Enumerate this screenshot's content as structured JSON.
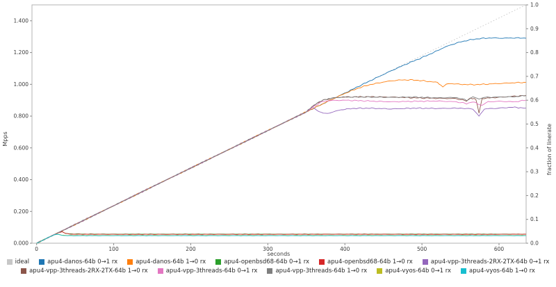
{
  "chart_data": {
    "type": "line",
    "title": "",
    "xlabel": "seconds",
    "ylabel_left": "Mpps",
    "ylabel_right": "fraction of linerate",
    "x_ticks": [
      0,
      100,
      200,
      300,
      400,
      500,
      600
    ],
    "x_tick_labels": [
      "0",
      "100",
      "200",
      "300",
      "400",
      "500",
      "600"
    ],
    "x_range": [
      0,
      635
    ],
    "y_left_ticks": [
      0.0,
      0.2,
      0.4,
      0.6,
      0.8,
      1.0,
      1.2,
      1.4
    ],
    "y_left_tick_labels": [
      "0.000",
      "0.200",
      "0.400",
      "0.600",
      "0.800",
      "1.000",
      "1.200",
      "1.400"
    ],
    "y_left_range": [
      0,
      1.5
    ],
    "y_right_ticks": [
      0.0,
      0.1,
      0.2,
      0.3,
      0.4,
      0.5,
      0.6,
      0.7,
      0.8,
      0.9,
      1.0
    ],
    "y_right_tick_labels": [
      "0.0",
      "0.1",
      "0.2",
      "0.3",
      "0.4",
      "0.5",
      "0.6",
      "0.7",
      "0.8",
      "0.9",
      "1.0"
    ],
    "y_right_range": [
      0,
      1.0
    ],
    "grid": false,
    "legend_position": "bottom",
    "legend_rows": [
      [
        0,
        1,
        2,
        3,
        4,
        5
      ],
      [
        6,
        7,
        8,
        9,
        10
      ]
    ],
    "series": [
      {
        "name": "ideal",
        "color": "#c7c7c7",
        "dash": "1.6,2.6",
        "noise": 0,
        "points": [
          [
            0,
            0
          ],
          [
            635,
            1.5
          ]
        ]
      },
      {
        "name": "apu4-danos-64b 0→1 rx",
        "color": "#1f77b4",
        "dash": "",
        "noise": 0.004,
        "points": [
          [
            0,
            0
          ],
          [
            50,
            0.118
          ],
          [
            100,
            0.236
          ],
          [
            150,
            0.355
          ],
          [
            200,
            0.473
          ],
          [
            250,
            0.591
          ],
          [
            300,
            0.709
          ],
          [
            350,
            0.827
          ],
          [
            400,
            0.945
          ],
          [
            430,
            1.016
          ],
          [
            460,
            1.085
          ],
          [
            480,
            1.128
          ],
          [
            500,
            1.168
          ],
          [
            515,
            1.2
          ],
          [
            530,
            1.235
          ],
          [
            545,
            1.26
          ],
          [
            560,
            1.278
          ],
          [
            575,
            1.288
          ],
          [
            590,
            1.292
          ],
          [
            605,
            1.29
          ],
          [
            620,
            1.292
          ],
          [
            635,
            1.29
          ]
        ]
      },
      {
        "name": "apu4-danos-64b 1→0 rx",
        "color": "#ff7f0e",
        "dash": "",
        "noise": 0.004,
        "points": [
          [
            0,
            0
          ],
          [
            50,
            0.118
          ],
          [
            100,
            0.236
          ],
          [
            150,
            0.355
          ],
          [
            200,
            0.473
          ],
          [
            250,
            0.591
          ],
          [
            300,
            0.709
          ],
          [
            350,
            0.827
          ],
          [
            380,
            0.898
          ],
          [
            400,
            0.943
          ],
          [
            415,
            0.972
          ],
          [
            430,
            0.995
          ],
          [
            445,
            1.01
          ],
          [
            460,
            1.022
          ],
          [
            475,
            1.028
          ],
          [
            490,
            1.027
          ],
          [
            505,
            1.02
          ],
          [
            520,
            1.012
          ],
          [
            527,
            0.985
          ],
          [
            534,
            1.005
          ],
          [
            550,
            1.0
          ],
          [
            565,
            0.998
          ],
          [
            580,
            1.0
          ],
          [
            600,
            1.005
          ],
          [
            620,
            1.01
          ],
          [
            635,
            1.012
          ]
        ]
      },
      {
        "name": "apu4-openbsd68-64b 0→1 rx",
        "color": "#2ca02c",
        "dash": "",
        "noise": 0.0012,
        "points": [
          [
            0,
            0
          ],
          [
            10,
            0.024
          ],
          [
            20,
            0.047
          ],
          [
            28,
            0.066
          ],
          [
            33,
            0.073
          ],
          [
            37,
            0.063
          ],
          [
            42,
            0.059
          ],
          [
            60,
            0.058
          ],
          [
            100,
            0.0575
          ],
          [
            200,
            0.0575
          ],
          [
            300,
            0.0575
          ],
          [
            400,
            0.0575
          ],
          [
            500,
            0.0575
          ],
          [
            600,
            0.0575
          ],
          [
            635,
            0.0575
          ]
        ]
      },
      {
        "name": "apu4-openbsd68-64b 1→0 rx",
        "color": "#d62728",
        "dash": "",
        "noise": 0.0012,
        "points": [
          [
            0,
            0
          ],
          [
            10,
            0.024
          ],
          [
            20,
            0.047
          ],
          [
            28,
            0.066
          ],
          [
            33,
            0.072
          ],
          [
            38,
            0.061
          ],
          [
            45,
            0.057
          ],
          [
            100,
            0.056
          ],
          [
            200,
            0.056
          ],
          [
            300,
            0.056
          ],
          [
            400,
            0.0565
          ],
          [
            500,
            0.056
          ],
          [
            600,
            0.056
          ],
          [
            635,
            0.057
          ]
        ]
      },
      {
        "name": "apu4-vpp-3threads-2RX-2TX-64b 0→1 rx",
        "color": "#9467bd",
        "dash": "",
        "noise": 0.004,
        "points": [
          [
            0,
            0
          ],
          [
            50,
            0.118
          ],
          [
            100,
            0.236
          ],
          [
            150,
            0.355
          ],
          [
            200,
            0.473
          ],
          [
            250,
            0.591
          ],
          [
            300,
            0.709
          ],
          [
            330,
            0.78
          ],
          [
            350,
            0.825
          ],
          [
            358,
            0.855
          ],
          [
            366,
            0.83
          ],
          [
            372,
            0.815
          ],
          [
            380,
            0.82
          ],
          [
            395,
            0.84
          ],
          [
            410,
            0.848
          ],
          [
            430,
            0.85
          ],
          [
            460,
            0.845
          ],
          [
            490,
            0.85
          ],
          [
            520,
            0.848
          ],
          [
            550,
            0.85
          ],
          [
            566,
            0.845
          ],
          [
            574,
            0.8
          ],
          [
            581,
            0.845
          ],
          [
            600,
            0.85
          ],
          [
            618,
            0.856
          ],
          [
            635,
            0.85
          ]
        ]
      },
      {
        "name": "apu4-vpp-3threads-2RX-2TX-64b 1→0 rx",
        "color": "#8c564b",
        "dash": "",
        "noise": 0.004,
        "points": [
          [
            0,
            0
          ],
          [
            50,
            0.118
          ],
          [
            100,
            0.236
          ],
          [
            150,
            0.355
          ],
          [
            200,
            0.473
          ],
          [
            250,
            0.591
          ],
          [
            300,
            0.709
          ],
          [
            350,
            0.827
          ],
          [
            362,
            0.875
          ],
          [
            372,
            0.9
          ],
          [
            385,
            0.915
          ],
          [
            400,
            0.92
          ],
          [
            430,
            0.922
          ],
          [
            460,
            0.92
          ],
          [
            490,
            0.915
          ],
          [
            520,
            0.912
          ],
          [
            545,
            0.91
          ],
          [
            558,
            0.895
          ],
          [
            563,
            0.915
          ],
          [
            570,
            0.905
          ],
          [
            574,
            0.82
          ],
          [
            578,
            0.91
          ],
          [
            590,
            0.915
          ],
          [
            605,
            0.92
          ],
          [
            620,
            0.925
          ],
          [
            635,
            0.93
          ]
        ]
      },
      {
        "name": "apu4-vpp-3threads-64b 0→1 rx",
        "color": "#e377c2",
        "dash": "",
        "noise": 0.004,
        "points": [
          [
            0,
            0
          ],
          [
            50,
            0.118
          ],
          [
            100,
            0.236
          ],
          [
            150,
            0.355
          ],
          [
            200,
            0.473
          ],
          [
            250,
            0.591
          ],
          [
            300,
            0.709
          ],
          [
            350,
            0.827
          ],
          [
            360,
            0.862
          ],
          [
            370,
            0.89
          ],
          [
            380,
            0.898
          ],
          [
            400,
            0.9
          ],
          [
            430,
            0.895
          ],
          [
            460,
            0.89
          ],
          [
            490,
            0.893
          ],
          [
            520,
            0.895
          ],
          [
            545,
            0.89
          ],
          [
            558,
            0.878
          ],
          [
            565,
            0.89
          ],
          [
            578,
            0.868
          ],
          [
            586,
            0.89
          ],
          [
            600,
            0.893
          ],
          [
            620,
            0.89
          ],
          [
            635,
            0.9
          ]
        ]
      },
      {
        "name": "apu4-vpp-3threads-64b 1→0 rx",
        "color": "#7f7f7f",
        "dash": "",
        "noise": 0.004,
        "points": [
          [
            0,
            0
          ],
          [
            50,
            0.118
          ],
          [
            100,
            0.236
          ],
          [
            150,
            0.355
          ],
          [
            200,
            0.473
          ],
          [
            250,
            0.591
          ],
          [
            300,
            0.709
          ],
          [
            350,
            0.827
          ],
          [
            362,
            0.878
          ],
          [
            374,
            0.905
          ],
          [
            388,
            0.917
          ],
          [
            400,
            0.92
          ],
          [
            430,
            0.92
          ],
          [
            460,
            0.918
          ],
          [
            490,
            0.92
          ],
          [
            520,
            0.915
          ],
          [
            545,
            0.917
          ],
          [
            558,
            0.9
          ],
          [
            566,
            0.92
          ],
          [
            574,
            0.908
          ],
          [
            580,
            0.918
          ],
          [
            600,
            0.92
          ],
          [
            620,
            0.922
          ],
          [
            635,
            0.928
          ]
        ]
      },
      {
        "name": "apu4-vyos-64b 0→1 rx",
        "color": "#bcbd22",
        "dash": "",
        "noise": 0.0012,
        "points": [
          [
            0,
            0
          ],
          [
            8,
            0.019
          ],
          [
            16,
            0.038
          ],
          [
            23,
            0.053
          ],
          [
            27,
            0.057
          ],
          [
            33,
            0.051
          ],
          [
            40,
            0.049
          ],
          [
            100,
            0.049
          ],
          [
            200,
            0.049
          ],
          [
            300,
            0.049
          ],
          [
            400,
            0.049
          ],
          [
            500,
            0.049
          ],
          [
            600,
            0.049
          ],
          [
            635,
            0.049
          ]
        ]
      },
      {
        "name": "apu4-vyos-64b 1→0 rx",
        "color": "#17becf",
        "dash": "",
        "noise": 0.0012,
        "points": [
          [
            0,
            0
          ],
          [
            8,
            0.019
          ],
          [
            16,
            0.038
          ],
          [
            23,
            0.053
          ],
          [
            27,
            0.056
          ],
          [
            33,
            0.05
          ],
          [
            40,
            0.0475
          ],
          [
            100,
            0.0475
          ],
          [
            200,
            0.0475
          ],
          [
            300,
            0.0475
          ],
          [
            400,
            0.0475
          ],
          [
            500,
            0.0475
          ],
          [
            600,
            0.0475
          ],
          [
            635,
            0.0475
          ]
        ]
      }
    ]
  },
  "style": {
    "spine_color": "#b3b3b3",
    "tick_color": "#8a8a8a",
    "label_color": "#3c3c3c",
    "background": "#ffffff"
  }
}
